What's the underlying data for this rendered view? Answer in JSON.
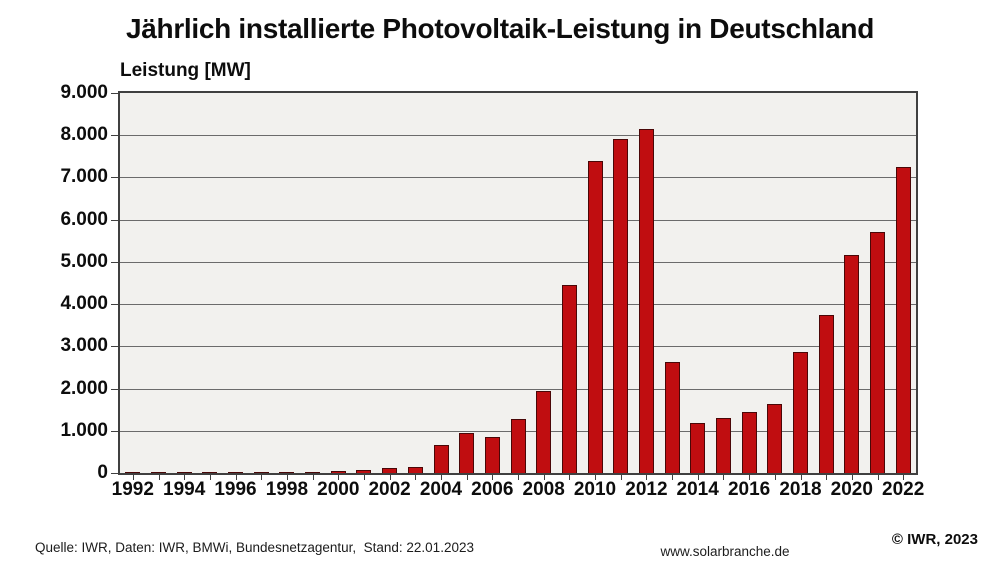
{
  "chart_data": {
    "type": "bar",
    "title": "Jährlich installierte Photovoltaik-Leistung in Deutschland",
    "ylabel": "Leistung [MW]",
    "xlabel": "",
    "ylim": [
      0,
      9000
    ],
    "ytick_step": 1000,
    "ytick_labels": [
      "0",
      "1.000",
      "2.000",
      "3.000",
      "4.000",
      "5.000",
      "6.000",
      "7.000",
      "8.000",
      "9.000"
    ],
    "years": [
      1992,
      1993,
      1994,
      1995,
      1996,
      1997,
      1998,
      1999,
      2000,
      2001,
      2002,
      2003,
      2004,
      2005,
      2006,
      2007,
      2008,
      2009,
      2010,
      2011,
      2012,
      2013,
      2014,
      2015,
      2016,
      2017,
      2018,
      2019,
      2020,
      2021,
      2022
    ],
    "values": [
      10,
      10,
      12,
      15,
      15,
      20,
      15,
      20,
      45,
      80,
      110,
      150,
      670,
      950,
      850,
      1270,
      1950,
      4450,
      7400,
      7900,
      8150,
      2630,
      1190,
      1310,
      1450,
      1630,
      2870,
      3750,
      5160,
      5710,
      7250
    ],
    "xtick_labels": [
      "1992",
      "1994",
      "1996",
      "1998",
      "2000",
      "2002",
      "2004",
      "2006",
      "2008",
      "2010",
      "2012",
      "2014",
      "2016",
      "2018",
      "2020",
      "2022"
    ],
    "grid": "horizontal",
    "legend": "none",
    "bar_color": "#c00d10",
    "bar_border_color": "#4a0707",
    "plot_background": "#f2f1ee",
    "grid_color": "#6b6b6b",
    "frame_color": "#404040"
  },
  "footer": {
    "source": "Quelle: IWR, Daten: IWR, BMWi, Bundesnetzagentur,  Stand: 22.01.2023",
    "website": "www.solarbranche.de",
    "copyright": "© IWR, 2023"
  }
}
